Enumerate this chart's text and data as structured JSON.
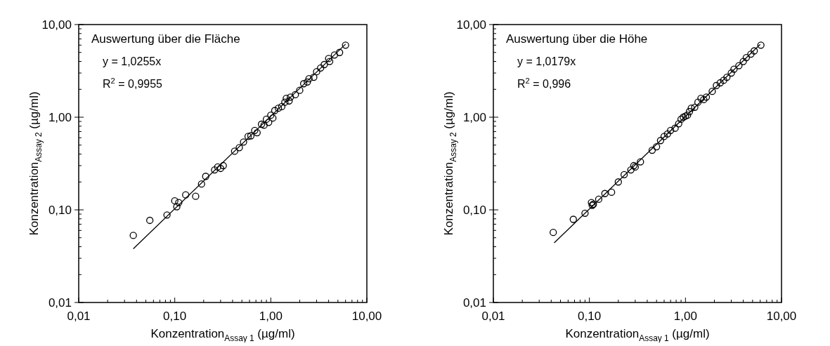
{
  "chart_data": [
    {
      "type": "scatter",
      "xlabel": "Konzentration$_{Assay 1}$ (µg/ml)",
      "ylabel": "Konzentration$_{Assay 2}$ (µg/ml)",
      "log": "xy",
      "grid": false,
      "annotations": [
        "Auswertung über die Fläche",
        "y = 1,0255x",
        "R$^{2}$ = 0,9955"
      ],
      "xlim": [
        0.01,
        10
      ],
      "ylim": [
        0.01,
        10
      ],
      "xticks": [
        {
          "value": 0.01,
          "label": "0,01"
        },
        {
          "value": 0.02,
          "label": null
        },
        {
          "value": 0.03,
          "label": null
        },
        {
          "value": 0.04,
          "label": null
        },
        {
          "value": 0.05,
          "label": null
        },
        {
          "value": 0.06,
          "label": null
        },
        {
          "value": 0.07,
          "label": null
        },
        {
          "value": 0.08,
          "label": null
        },
        {
          "value": 0.09,
          "label": null
        },
        {
          "value": 0.1,
          "label": "0,10"
        },
        {
          "value": 0.2,
          "label": null
        },
        {
          "value": 0.3,
          "label": null
        },
        {
          "value": 0.4,
          "label": null
        },
        {
          "value": 0.5,
          "label": null
        },
        {
          "value": 0.6,
          "label": null
        },
        {
          "value": 0.7,
          "label": null
        },
        {
          "value": 0.8,
          "label": null
        },
        {
          "value": 0.9,
          "label": null
        },
        {
          "value": 1,
          "label": "1,00"
        },
        {
          "value": 2,
          "label": null
        },
        {
          "value": 3,
          "label": null
        },
        {
          "value": 4,
          "label": null
        },
        {
          "value": 5,
          "label": null
        },
        {
          "value": 6,
          "label": null
        },
        {
          "value": 7,
          "label": null
        },
        {
          "value": 8,
          "label": null
        },
        {
          "value": 9,
          "label": null
        },
        {
          "value": 10,
          "label": "10,00"
        }
      ],
      "yticks": [
        {
          "value": 0.01,
          "label": "0,01"
        },
        {
          "value": 0.02,
          "label": null
        },
        {
          "value": 0.03,
          "label": null
        },
        {
          "value": 0.04,
          "label": null
        },
        {
          "value": 0.05,
          "label": null
        },
        {
          "value": 0.06,
          "label": null
        },
        {
          "value": 0.07,
          "label": null
        },
        {
          "value": 0.08,
          "label": null
        },
        {
          "value": 0.09,
          "label": null
        },
        {
          "value": 0.1,
          "label": "0,10"
        },
        {
          "value": 0.2,
          "label": null
        },
        {
          "value": 0.3,
          "label": null
        },
        {
          "value": 0.4,
          "label": null
        },
        {
          "value": 0.5,
          "label": null
        },
        {
          "value": 0.6,
          "label": null
        },
        {
          "value": 0.7,
          "label": null
        },
        {
          "value": 0.8,
          "label": null
        },
        {
          "value": 0.9,
          "label": null
        },
        {
          "value": 1,
          "label": "1,00"
        },
        {
          "value": 2,
          "label": null
        },
        {
          "value": 3,
          "label": null
        },
        {
          "value": 4,
          "label": null
        },
        {
          "value": 5,
          "label": null
        },
        {
          "value": 6,
          "label": null
        },
        {
          "value": 7,
          "label": null
        },
        {
          "value": 8,
          "label": null
        },
        {
          "value": 9,
          "label": null
        },
        {
          "value": 10,
          "label": "10,00"
        }
      ],
      "series": [
        {
          "type": "scatter",
          "marker": "circle",
          "color": "#000000",
          "x": [
            0.037,
            0.055,
            0.083,
            0.1,
            0.105,
            0.11,
            0.13,
            0.165,
            0.19,
            0.21,
            0.26,
            0.28,
            0.3,
            0.32,
            0.42,
            0.47,
            0.52,
            0.58,
            0.62,
            0.68,
            0.72,
            0.8,
            0.85,
            0.9,
            0.95,
            1.0,
            1.05,
            1.1,
            1.2,
            1.3,
            1.4,
            1.45,
            1.55,
            1.6,
            1.8,
            2.0,
            2.2,
            2.4,
            2.5,
            2.8,
            3.0,
            3.3,
            3.6,
            4.0,
            4.1,
            4.6,
            5.2,
            6.0
          ],
          "values": [
            0.053,
            0.077,
            0.088,
            0.125,
            0.108,
            0.12,
            0.145,
            0.14,
            0.19,
            0.23,
            0.27,
            0.29,
            0.28,
            0.3,
            0.43,
            0.47,
            0.54,
            0.62,
            0.63,
            0.72,
            0.68,
            0.84,
            0.82,
            0.95,
            0.88,
            1.05,
            0.98,
            1.18,
            1.25,
            1.3,
            1.45,
            1.6,
            1.5,
            1.65,
            1.75,
            1.95,
            2.3,
            2.4,
            2.6,
            2.7,
            3.1,
            3.4,
            3.7,
            4.3,
            4.0,
            4.7,
            5.0,
            6.0
          ]
        },
        {
          "type": "line",
          "color": "#000000",
          "x": [
            0.037,
            6.0
          ],
          "values": [
            0.038,
            6.15
          ]
        }
      ]
    },
    {
      "type": "scatter",
      "xlabel": "Konzentration$_{Assay 1}$ (µg/ml)",
      "ylabel": "Konzentration$_{Assay 2}$ (µg/ml)",
      "log": "xy",
      "grid": false,
      "annotations": [
        "Auswertung über die Höhe",
        "y = 1,0179x",
        "R$^{2}$ = 0,996"
      ],
      "xlim": [
        0.01,
        10
      ],
      "ylim": [
        0.01,
        10
      ],
      "xticks": [
        {
          "value": 0.01,
          "label": "0,01"
        },
        {
          "value": 0.02,
          "label": null
        },
        {
          "value": 0.03,
          "label": null
        },
        {
          "value": 0.04,
          "label": null
        },
        {
          "value": 0.05,
          "label": null
        },
        {
          "value": 0.06,
          "label": null
        },
        {
          "value": 0.07,
          "label": null
        },
        {
          "value": 0.08,
          "label": null
        },
        {
          "value": 0.09,
          "label": null
        },
        {
          "value": 0.1,
          "label": "0,10"
        },
        {
          "value": 0.2,
          "label": null
        },
        {
          "value": 0.3,
          "label": null
        },
        {
          "value": 0.4,
          "label": null
        },
        {
          "value": 0.5,
          "label": null
        },
        {
          "value": 0.6,
          "label": null
        },
        {
          "value": 0.7,
          "label": null
        },
        {
          "value": 0.8,
          "label": null
        },
        {
          "value": 0.9,
          "label": null
        },
        {
          "value": 1,
          "label": "1,00"
        },
        {
          "value": 2,
          "label": null
        },
        {
          "value": 3,
          "label": null
        },
        {
          "value": 4,
          "label": null
        },
        {
          "value": 5,
          "label": null
        },
        {
          "value": 6,
          "label": null
        },
        {
          "value": 7,
          "label": null
        },
        {
          "value": 8,
          "label": null
        },
        {
          "value": 9,
          "label": null
        },
        {
          "value": 10,
          "label": "10,00"
        }
      ],
      "yticks": [
        {
          "value": 0.01,
          "label": "0,01"
        },
        {
          "value": 0.02,
          "label": null
        },
        {
          "value": 0.03,
          "label": null
        },
        {
          "value": 0.04,
          "label": null
        },
        {
          "value": 0.05,
          "label": null
        },
        {
          "value": 0.06,
          "label": null
        },
        {
          "value": 0.07,
          "label": null
        },
        {
          "value": 0.08,
          "label": null
        },
        {
          "value": 0.09,
          "label": null
        },
        {
          "value": 0.1,
          "label": "0,10"
        },
        {
          "value": 0.2,
          "label": null
        },
        {
          "value": 0.3,
          "label": null
        },
        {
          "value": 0.4,
          "label": null
        },
        {
          "value": 0.5,
          "label": null
        },
        {
          "value": 0.6,
          "label": null
        },
        {
          "value": 0.7,
          "label": null
        },
        {
          "value": 0.8,
          "label": null
        },
        {
          "value": 0.9,
          "label": null
        },
        {
          "value": 1,
          "label": "1,00"
        },
        {
          "value": 2,
          "label": null
        },
        {
          "value": 3,
          "label": null
        },
        {
          "value": 4,
          "label": null
        },
        {
          "value": 5,
          "label": null
        },
        {
          "value": 6,
          "label": null
        },
        {
          "value": 7,
          "label": null
        },
        {
          "value": 8,
          "label": null
        },
        {
          "value": 9,
          "label": null
        },
        {
          "value": 10,
          "label": "10,00"
        }
      ],
      "series": [
        {
          "type": "scatter",
          "marker": "circle",
          "color": "#000000",
          "x": [
            0.042,
            0.068,
            0.09,
            0.105,
            0.107,
            0.11,
            0.125,
            0.145,
            0.17,
            0.2,
            0.23,
            0.27,
            0.29,
            0.3,
            0.34,
            0.45,
            0.5,
            0.55,
            0.6,
            0.65,
            0.7,
            0.78,
            0.85,
            0.9,
            0.95,
            1.0,
            1.05,
            1.1,
            1.15,
            1.25,
            1.35,
            1.45,
            1.55,
            1.65,
            1.9,
            2.1,
            2.3,
            2.5,
            2.7,
            3.0,
            3.2,
            3.6,
            4.0,
            4.3,
            4.8,
            5.2,
            6.1
          ],
          "values": [
            0.057,
            0.079,
            0.092,
            0.12,
            0.112,
            0.115,
            0.13,
            0.15,
            0.155,
            0.2,
            0.24,
            0.27,
            0.3,
            0.29,
            0.33,
            0.44,
            0.48,
            0.56,
            0.62,
            0.66,
            0.72,
            0.76,
            0.85,
            0.95,
            1.0,
            1.03,
            1.05,
            1.15,
            1.25,
            1.28,
            1.45,
            1.6,
            1.55,
            1.65,
            1.9,
            2.2,
            2.35,
            2.5,
            2.7,
            3.0,
            3.3,
            3.6,
            4.0,
            4.4,
            4.8,
            5.2,
            6.0
          ]
        },
        {
          "type": "line",
          "color": "#000000",
          "x": [
            0.043,
            6.0
          ],
          "values": [
            0.044,
            6.1
          ]
        }
      ]
    }
  ]
}
